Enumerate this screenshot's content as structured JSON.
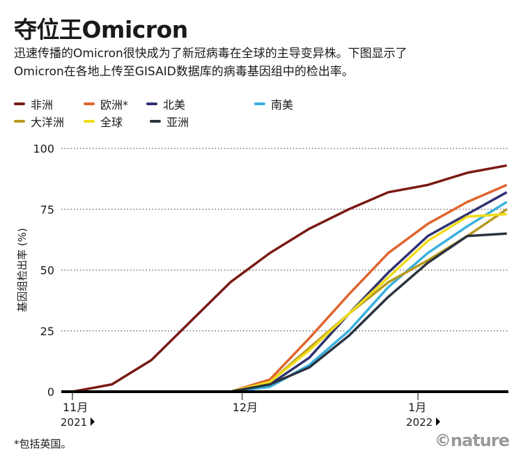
{
  "header": {
    "title": "夺位王Omicron",
    "subtitle_lines": [
      "迅速传播的Omicron很快成为了新冠病毒在全球的主导变异株。下图显示了",
      "Omicron在各地上传至GISAID数据库的病毒基因组中的检出率。"
    ]
  },
  "footnote": "*包括英国。",
  "logo": "©nature",
  "chart_data": {
    "type": "line",
    "title": "夺位王Omicron",
    "ylabel": "基因组检出率 (%)",
    "xlabel": "",
    "ylim": [
      0,
      100
    ],
    "yticks": [
      0,
      25,
      50,
      75,
      100
    ],
    "x_unit": "weeks since 2021-11-01",
    "xlim": [
      0,
      11
    ],
    "xticks": [
      {
        "x": 0,
        "label": "11月",
        "year": "2021"
      },
      {
        "x": 4.3,
        "label": "12月",
        "year": ""
      },
      {
        "x": 8.75,
        "label": "1月",
        "year": "2022"
      }
    ],
    "grid": "horizontal dotted",
    "legend": "top",
    "x": [
      0,
      1,
      2,
      3,
      4,
      5,
      6,
      7,
      8,
      9,
      10,
      11
    ],
    "series": [
      {
        "name": "非洲",
        "color": "#7a1a14",
        "values": [
          0,
          3,
          13,
          29,
          45,
          57,
          67,
          75,
          82,
          85,
          90,
          93
        ]
      },
      {
        "name": "欧洲*",
        "color": "#e0652e",
        "values": [
          0,
          0,
          0,
          0,
          0,
          5,
          22,
          40,
          57,
          69,
          78,
          85
        ]
      },
      {
        "name": "北美",
        "color": "#2f3373",
        "values": [
          0,
          0,
          0,
          0,
          0,
          3,
          14,
          32,
          49,
          64,
          73,
          82
        ]
      },
      {
        "name": "南美",
        "color": "#3ab0de",
        "values": [
          0,
          0,
          0,
          0,
          0,
          2,
          11,
          25,
          43,
          57,
          68,
          78
        ]
      },
      {
        "name": "大洋洲",
        "color": "#b89a1e",
        "values": [
          0,
          0,
          0,
          0,
          0,
          4,
          18,
          32,
          45,
          54,
          64,
          75
        ]
      },
      {
        "name": "全球",
        "color": "#f0dc1a",
        "values": [
          0,
          0,
          0,
          0,
          0,
          4,
          17,
          32,
          47,
          62,
          72,
          73
        ]
      },
      {
        "name": "亚洲",
        "color": "#2b3340",
        "values": [
          0,
          0,
          0,
          0,
          0,
          3,
          10,
          23,
          39,
          53,
          64,
          65
        ]
      }
    ]
  }
}
